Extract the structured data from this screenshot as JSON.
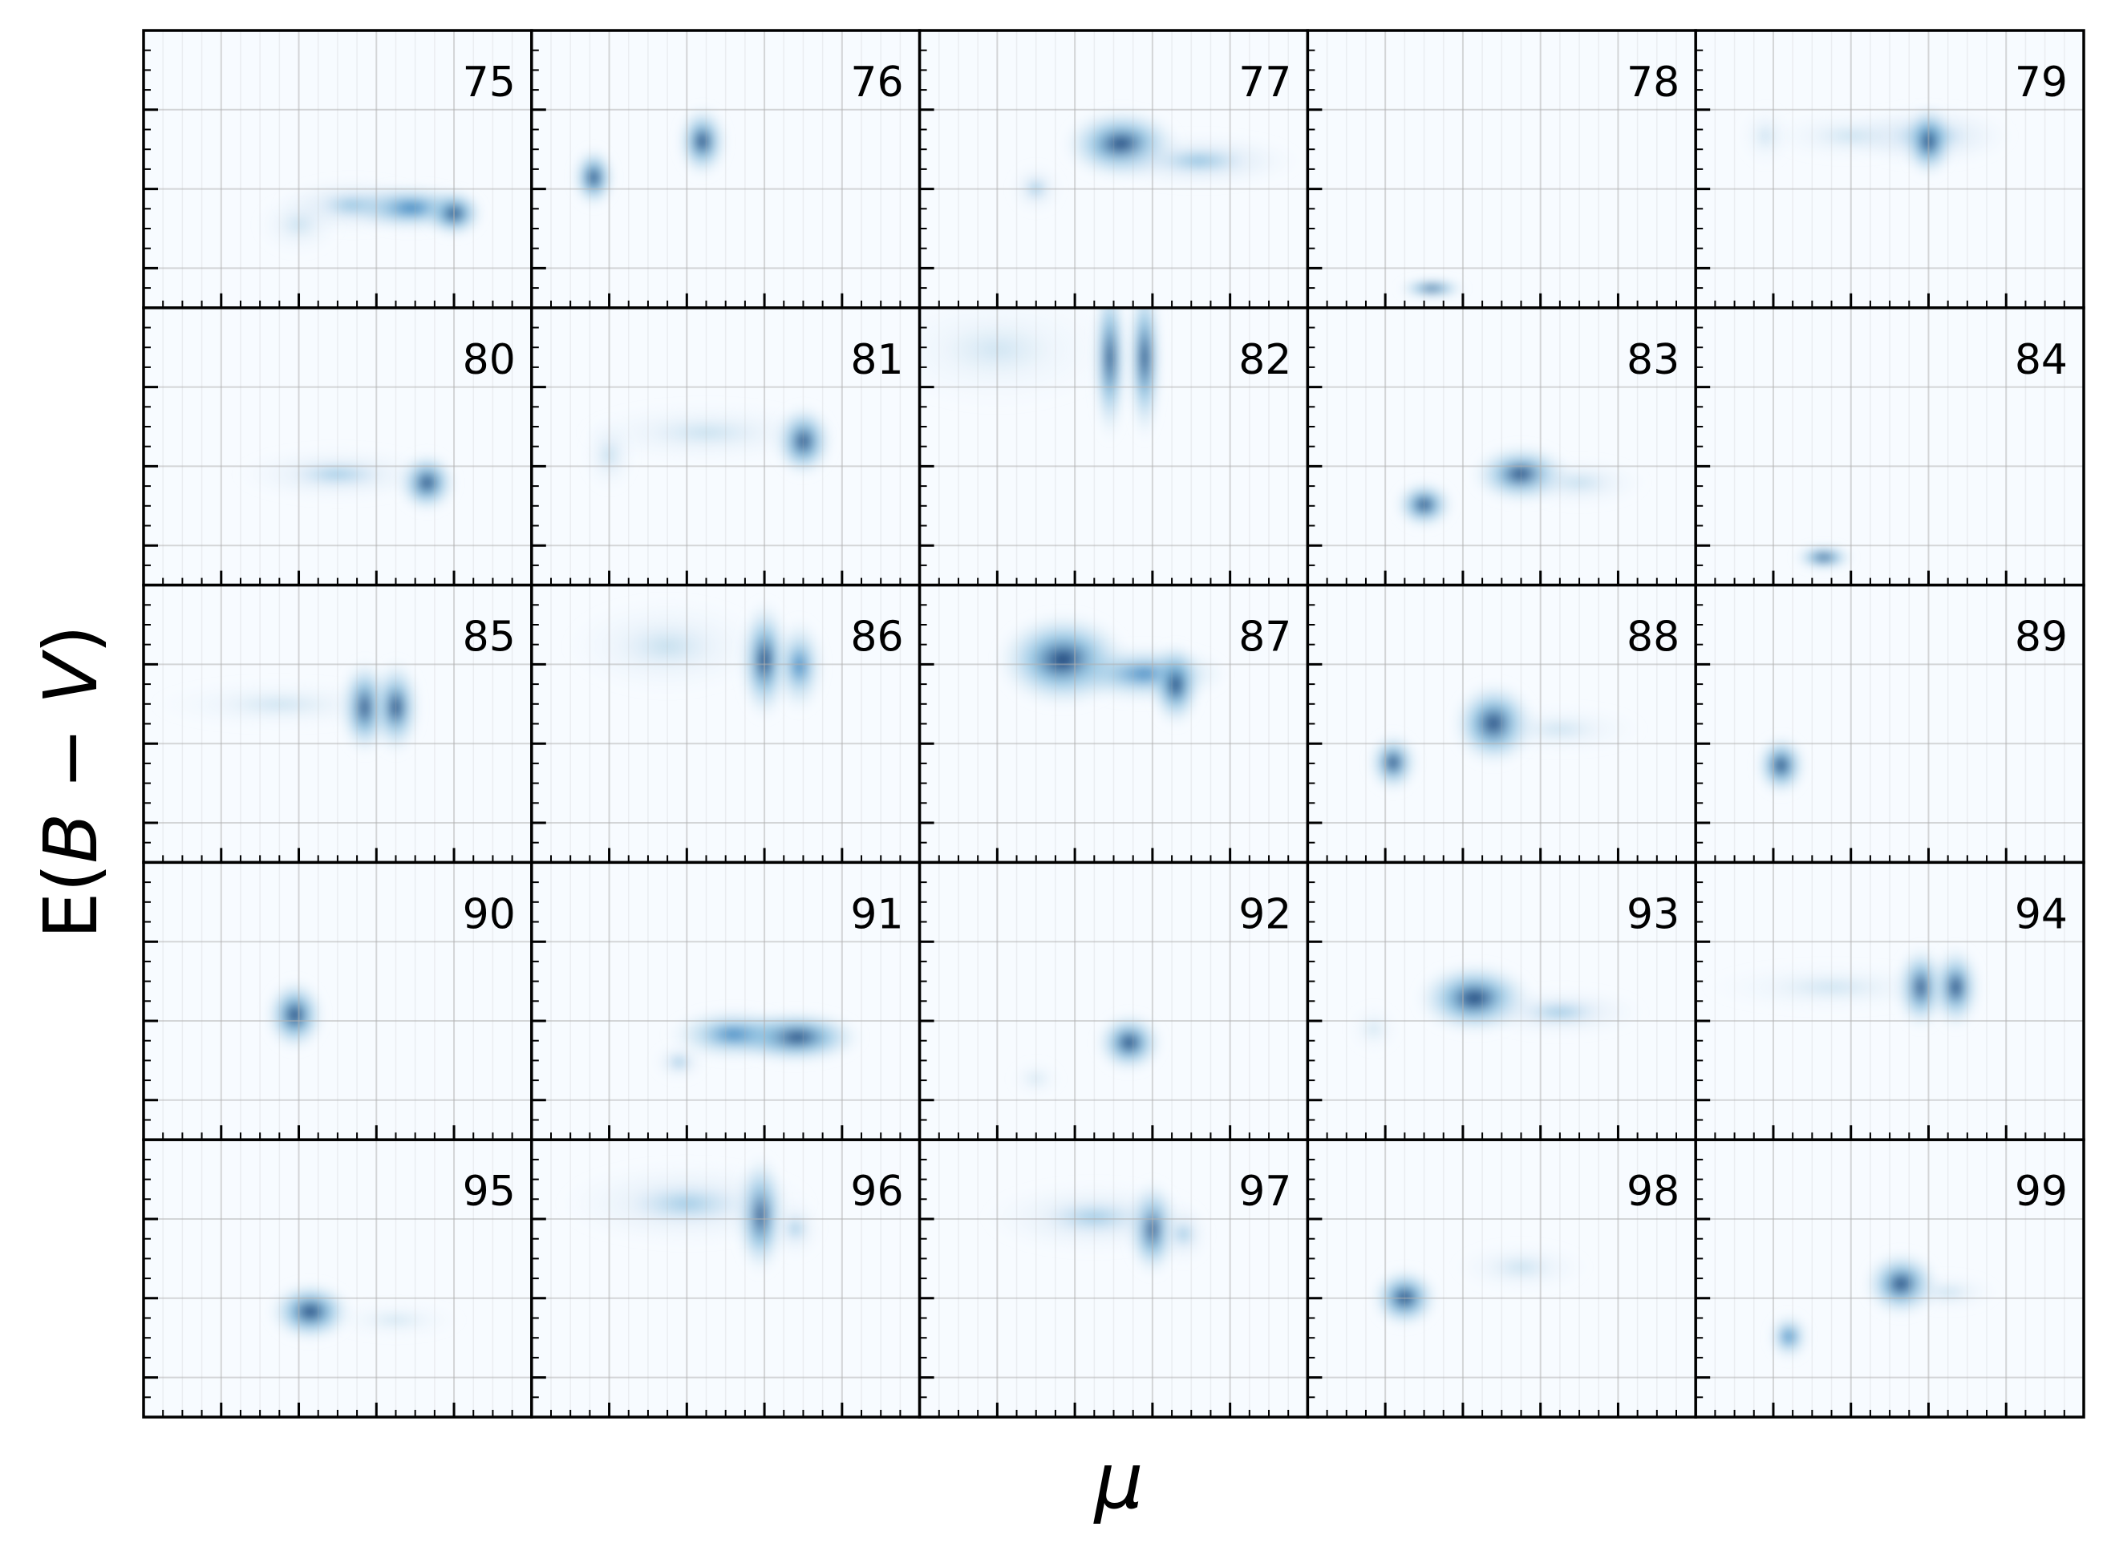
{
  "figure": {
    "xlabel": "μ",
    "ylabel_prefix": "E(",
    "ylabel_b": "B",
    "ylabel_minus": " − ",
    "ylabel_v": "V",
    "ylabel_suffix": ")"
  },
  "colors": {
    "background": "#f7fbff",
    "density_ramp": [
      "#f7fbff",
      "#deebf7",
      "#c6dbef",
      "#9ecae1",
      "#6baed6",
      "#4292c6",
      "#2171b5",
      "#08519c",
      "#08306b"
    ],
    "frame": "#000000",
    "grid": "#b0b0b0"
  },
  "chart_data": {
    "type": "heatmap",
    "layout": "5x5 grid of panels, shared axes",
    "xlabel": "μ",
    "ylabel": "E(B − V)",
    "x_tick_labels": [],
    "y_tick_labels": [],
    "grid": true,
    "panels": [
      {
        "label": "75",
        "blobs": [
          {
            "x": 0.54,
            "y": 0.37,
            "sx": 0.09,
            "sy": 0.045,
            "w": 0.45
          },
          {
            "x": 0.69,
            "y": 0.36,
            "sx": 0.08,
            "sy": 0.04,
            "w": 0.6
          },
          {
            "x": 0.8,
            "y": 0.34,
            "sx": 0.035,
            "sy": 0.04,
            "w": 1.0
          },
          {
            "x": 0.4,
            "y": 0.3,
            "sx": 0.05,
            "sy": 0.05,
            "w": 0.2
          }
        ]
      },
      {
        "label": "76",
        "blobs": [
          {
            "x": 0.16,
            "y": 0.47,
            "sx": 0.025,
            "sy": 0.05,
            "w": 1.0
          },
          {
            "x": 0.44,
            "y": 0.6,
            "sx": 0.03,
            "sy": 0.06,
            "w": 0.9
          }
        ]
      },
      {
        "label": "77",
        "blobs": [
          {
            "x": 0.52,
            "y": 0.59,
            "sx": 0.07,
            "sy": 0.06,
            "w": 0.95
          },
          {
            "x": 0.72,
            "y": 0.53,
            "sx": 0.12,
            "sy": 0.045,
            "w": 0.45
          },
          {
            "x": 0.3,
            "y": 0.43,
            "sx": 0.03,
            "sy": 0.04,
            "w": 0.35
          }
        ]
      },
      {
        "label": "78",
        "blobs": [
          {
            "x": 0.32,
            "y": 0.07,
            "sx": 0.04,
            "sy": 0.015,
            "w": 1.0
          }
        ]
      },
      {
        "label": "79",
        "blobs": [
          {
            "x": 0.6,
            "y": 0.62,
            "sx": 0.1,
            "sy": 0.05,
            "w": 0.45
          },
          {
            "x": 0.6,
            "y": 0.6,
            "sx": 0.03,
            "sy": 0.06,
            "w": 0.95
          },
          {
            "x": 0.18,
            "y": 0.62,
            "sx": 0.03,
            "sy": 0.05,
            "w": 0.15
          },
          {
            "x": 0.4,
            "y": 0.62,
            "sx": 0.1,
            "sy": 0.04,
            "w": 0.18
          }
        ]
      },
      {
        "label": "80",
        "blobs": [
          {
            "x": 0.73,
            "y": 0.37,
            "sx": 0.035,
            "sy": 0.05,
            "w": 1.0
          },
          {
            "x": 0.5,
            "y": 0.4,
            "sx": 0.12,
            "sy": 0.045,
            "w": 0.3
          }
        ]
      },
      {
        "label": "81",
        "blobs": [
          {
            "x": 0.7,
            "y": 0.52,
            "sx": 0.035,
            "sy": 0.06,
            "w": 1.0
          },
          {
            "x": 0.45,
            "y": 0.55,
            "sx": 0.15,
            "sy": 0.05,
            "w": 0.2
          },
          {
            "x": 0.2,
            "y": 0.47,
            "sx": 0.03,
            "sy": 0.06,
            "w": 0.25
          }
        ]
      },
      {
        "label": "82",
        "blobs": [
          {
            "x": 0.49,
            "y": 0.82,
            "sx": 0.02,
            "sy": 0.14,
            "w": 0.95
          },
          {
            "x": 0.58,
            "y": 0.82,
            "sx": 0.02,
            "sy": 0.14,
            "w": 0.95
          },
          {
            "x": 0.2,
            "y": 0.85,
            "sx": 0.15,
            "sy": 0.1,
            "w": 0.1
          }
        ]
      },
      {
        "label": "83",
        "blobs": [
          {
            "x": 0.55,
            "y": 0.4,
            "sx": 0.06,
            "sy": 0.05,
            "w": 0.85
          },
          {
            "x": 0.3,
            "y": 0.29,
            "sx": 0.035,
            "sy": 0.04,
            "w": 0.95
          },
          {
            "x": 0.7,
            "y": 0.37,
            "sx": 0.08,
            "sy": 0.04,
            "w": 0.25
          }
        ]
      },
      {
        "label": "84",
        "blobs": [
          {
            "x": 0.33,
            "y": 0.1,
            "sx": 0.035,
            "sy": 0.02,
            "w": 1.0
          }
        ]
      },
      {
        "label": "85",
        "blobs": [
          {
            "x": 0.57,
            "y": 0.56,
            "sx": 0.03,
            "sy": 0.08,
            "w": 0.95
          },
          {
            "x": 0.65,
            "y": 0.56,
            "sx": 0.03,
            "sy": 0.08,
            "w": 0.85
          },
          {
            "x": 0.35,
            "y": 0.57,
            "sx": 0.15,
            "sy": 0.04,
            "w": 0.15
          }
        ]
      },
      {
        "label": "86",
        "blobs": [
          {
            "x": 0.6,
            "y": 0.73,
            "sx": 0.03,
            "sy": 0.1,
            "w": 0.95
          },
          {
            "x": 0.69,
            "y": 0.71,
            "sx": 0.03,
            "sy": 0.08,
            "w": 0.55
          },
          {
            "x": 0.35,
            "y": 0.78,
            "sx": 0.12,
            "sy": 0.08,
            "w": 0.22
          }
        ]
      },
      {
        "label": "87",
        "blobs": [
          {
            "x": 0.37,
            "y": 0.73,
            "sx": 0.08,
            "sy": 0.08,
            "w": 1.0
          },
          {
            "x": 0.58,
            "y": 0.68,
            "sx": 0.1,
            "sy": 0.05,
            "w": 0.5
          },
          {
            "x": 0.66,
            "y": 0.64,
            "sx": 0.03,
            "sy": 0.07,
            "w": 0.95
          }
        ]
      },
      {
        "label": "88",
        "blobs": [
          {
            "x": 0.48,
            "y": 0.5,
            "sx": 0.05,
            "sy": 0.07,
            "w": 1.0
          },
          {
            "x": 0.22,
            "y": 0.36,
            "sx": 0.03,
            "sy": 0.05,
            "w": 0.85
          },
          {
            "x": 0.65,
            "y": 0.48,
            "sx": 0.1,
            "sy": 0.04,
            "w": 0.15
          }
        ]
      },
      {
        "label": "89",
        "blobs": [
          {
            "x": 0.22,
            "y": 0.35,
            "sx": 0.03,
            "sy": 0.05,
            "w": 1.0
          }
        ]
      },
      {
        "label": "90",
        "blobs": [
          {
            "x": 0.39,
            "y": 0.45,
            "sx": 0.035,
            "sy": 0.06,
            "w": 1.0
          }
        ]
      },
      {
        "label": "91",
        "blobs": [
          {
            "x": 0.68,
            "y": 0.37,
            "sx": 0.08,
            "sy": 0.045,
            "w": 1.0
          },
          {
            "x": 0.52,
            "y": 0.38,
            "sx": 0.08,
            "sy": 0.045,
            "w": 0.55
          },
          {
            "x": 0.38,
            "y": 0.28,
            "sx": 0.03,
            "sy": 0.03,
            "w": 0.4
          }
        ]
      },
      {
        "label": "92",
        "blobs": [
          {
            "x": 0.54,
            "y": 0.35,
            "sx": 0.04,
            "sy": 0.05,
            "w": 0.95
          },
          {
            "x": 0.3,
            "y": 0.22,
            "sx": 0.03,
            "sy": 0.03,
            "w": 0.1
          }
        ]
      },
      {
        "label": "93",
        "blobs": [
          {
            "x": 0.43,
            "y": 0.51,
            "sx": 0.07,
            "sy": 0.06,
            "w": 1.0
          },
          {
            "x": 0.65,
            "y": 0.46,
            "sx": 0.1,
            "sy": 0.04,
            "w": 0.35
          },
          {
            "x": 0.17,
            "y": 0.4,
            "sx": 0.03,
            "sy": 0.04,
            "w": 0.1
          }
        ]
      },
      {
        "label": "94",
        "blobs": [
          {
            "x": 0.58,
            "y": 0.55,
            "sx": 0.03,
            "sy": 0.07,
            "w": 0.9
          },
          {
            "x": 0.67,
            "y": 0.55,
            "sx": 0.03,
            "sy": 0.07,
            "w": 0.85
          },
          {
            "x": 0.35,
            "y": 0.55,
            "sx": 0.15,
            "sy": 0.04,
            "w": 0.15
          }
        ]
      },
      {
        "label": "95",
        "blobs": [
          {
            "x": 0.43,
            "y": 0.38,
            "sx": 0.05,
            "sy": 0.05,
            "w": 1.0
          },
          {
            "x": 0.65,
            "y": 0.35,
            "sx": 0.08,
            "sy": 0.03,
            "w": 0.1
          }
        ]
      },
      {
        "label": "96",
        "blobs": [
          {
            "x": 0.59,
            "y": 0.73,
            "sx": 0.03,
            "sy": 0.1,
            "w": 0.95
          },
          {
            "x": 0.4,
            "y": 0.77,
            "sx": 0.15,
            "sy": 0.07,
            "w": 0.3
          },
          {
            "x": 0.68,
            "y": 0.68,
            "sx": 0.03,
            "sy": 0.05,
            "w": 0.3
          }
        ]
      },
      {
        "label": "97",
        "blobs": [
          {
            "x": 0.6,
            "y": 0.68,
            "sx": 0.03,
            "sy": 0.08,
            "w": 0.95
          },
          {
            "x": 0.45,
            "y": 0.72,
            "sx": 0.13,
            "sy": 0.06,
            "w": 0.3
          },
          {
            "x": 0.68,
            "y": 0.66,
            "sx": 0.03,
            "sy": 0.05,
            "w": 0.35
          }
        ]
      },
      {
        "label": "98",
        "blobs": [
          {
            "x": 0.25,
            "y": 0.43,
            "sx": 0.04,
            "sy": 0.05,
            "w": 1.0
          },
          {
            "x": 0.55,
            "y": 0.54,
            "sx": 0.08,
            "sy": 0.04,
            "w": 0.2
          }
        ]
      },
      {
        "label": "99",
        "blobs": [
          {
            "x": 0.53,
            "y": 0.48,
            "sx": 0.045,
            "sy": 0.055,
            "w": 0.95
          },
          {
            "x": 0.24,
            "y": 0.29,
            "sx": 0.025,
            "sy": 0.04,
            "w": 0.55
          },
          {
            "x": 0.65,
            "y": 0.45,
            "sx": 0.06,
            "sy": 0.03,
            "w": 0.2
          }
        ]
      }
    ]
  }
}
